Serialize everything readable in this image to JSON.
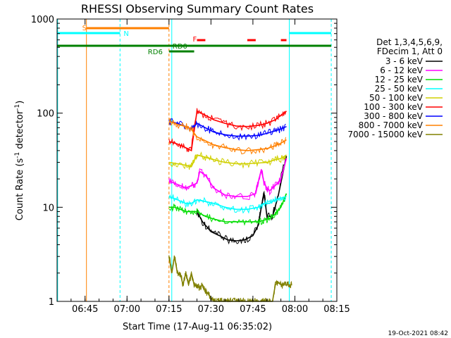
{
  "chart_data": {
    "type": "line",
    "title": "RHESSI Observing Summary Count Rates",
    "xlabel": "Start Time (17-Aug-11 06:35:02)",
    "ylabel_main": "Count Rate (s",
    "ylabel_sup": "-1",
    "ylabel_mid": " detector",
    "ylabel_sup2": "-1",
    "ylabel_end": ")",
    "y_scale": "log",
    "ylim": [
      1,
      1000
    ],
    "xlim_minutes": [
      0,
      100
    ],
    "x_ticks": [
      {
        "label": "06:45",
        "minutes": 10
      },
      {
        "label": "07:00",
        "minutes": 25
      },
      {
        "label": "07:15",
        "minutes": 40
      },
      {
        "label": "07:30",
        "minutes": 55
      },
      {
        "label": "07:45",
        "minutes": 70
      },
      {
        "label": "08:00",
        "minutes": 85
      },
      {
        "label": "08:15",
        "minutes": 100
      }
    ],
    "y_ticks": [
      {
        "label": "1",
        "value": 1
      },
      {
        "label": "10",
        "value": 10
      },
      {
        "label": "100",
        "value": 100
      },
      {
        "label": "1000",
        "value": 1000
      }
    ],
    "legend_header": [
      "Det 1,3,4,5,6,9,",
      "FDecim 1, Att 0"
    ],
    "series": [
      {
        "name": "3 - 6 keV",
        "color": "#000000",
        "t": [
          50,
          52,
          55,
          58,
          61,
          64,
          67,
          70,
          72,
          73,
          74,
          75,
          77,
          79,
          82
        ],
        "v": [
          9,
          7,
          5.5,
          5,
          4.5,
          4.4,
          4.5,
          5,
          6.5,
          10,
          14,
          8,
          8,
          13,
          35
        ]
      },
      {
        "name": "6 - 12 keV",
        "color": "#ff00ff",
        "t": [
          40,
          42,
          44,
          46,
          48,
          50,
          51,
          53,
          56,
          60,
          64,
          68,
          71,
          72,
          73,
          74,
          75,
          76,
          78,
          80,
          82
        ],
        "v": [
          19,
          18,
          17,
          16,
          17,
          18,
          24,
          22,
          16,
          13.5,
          13,
          13,
          14,
          19,
          25,
          18,
          16,
          15,
          17,
          20,
          33
        ]
      },
      {
        "name": "12 - 25 keV",
        "color": "#00dd00",
        "t": [
          40,
          42,
          44,
          46,
          48,
          50,
          53,
          56,
          60,
          64,
          68,
          72,
          74,
          76,
          78,
          80,
          82
        ],
        "v": [
          10,
          10,
          9.5,
          9,
          9,
          9,
          8,
          7.5,
          7,
          7,
          7,
          7,
          7.3,
          7.6,
          8.5,
          10,
          14
        ]
      },
      {
        "name": "25 - 50 keV",
        "color": "#00ffff",
        "t": [
          40,
          43,
          46,
          48,
          50,
          53,
          56,
          60,
          64,
          68,
          72,
          74,
          76,
          78,
          80,
          82
        ],
        "v": [
          13,
          12,
          11,
          11,
          12,
          11.5,
          11,
          10,
          9.5,
          9.5,
          10,
          11,
          11,
          12,
          12.5,
          13
        ]
      },
      {
        "name": "50 - 100 keV",
        "color": "#d0d000",
        "t": [
          40,
          43,
          46,
          48,
          50,
          53,
          56,
          60,
          64,
          68,
          72,
          75,
          78,
          80,
          82
        ],
        "v": [
          30,
          29,
          28,
          27,
          36,
          34,
          32,
          30,
          29,
          29,
          29.5,
          30,
          32,
          33,
          36
        ]
      },
      {
        "name": "100 - 300 keV",
        "color": "#ff0000",
        "t": [
          40,
          43,
          46,
          48,
          50,
          53,
          56,
          60,
          64,
          68,
          72,
          75,
          78,
          80,
          82
        ],
        "v": [
          50,
          47,
          43,
          40,
          105,
          95,
          85,
          78,
          73,
          72,
          74,
          78,
          85,
          95,
          105
        ]
      },
      {
        "name": "300 - 800 keV",
        "color": "#0000ff",
        "t": [
          40,
          43,
          46,
          48,
          50,
          53,
          56,
          60,
          64,
          68,
          72,
          75,
          78,
          80,
          82
        ],
        "v": [
          82,
          78,
          72,
          68,
          78,
          70,
          63,
          59,
          57,
          57,
          58,
          61,
          65,
          68,
          72
        ]
      },
      {
        "name": "800 - 7000 keV",
        "color": "#ff8000",
        "t": [
          40,
          43,
          46,
          48,
          50,
          53,
          56,
          60,
          64,
          68,
          72,
          75,
          78,
          80,
          82
        ],
        "v": [
          82,
          76,
          72,
          67,
          56,
          51,
          46,
          43,
          41,
          40,
          41,
          42,
          45,
          48,
          52
        ]
      },
      {
        "name": "7000 - 15000 keV",
        "color": "#808000",
        "t": [
          40,
          41,
          42,
          43,
          44,
          45,
          46,
          47,
          48,
          49,
          50,
          51,
          52,
          53,
          54,
          55,
          56,
          57,
          58,
          59,
          60,
          61,
          62,
          63,
          64,
          65,
          66,
          67,
          68,
          69,
          70,
          71,
          72,
          73,
          74,
          75,
          76,
          77,
          78,
          79,
          80,
          81,
          82,
          83,
          84
        ],
        "v": [
          3,
          2,
          3,
          2,
          2,
          1.5,
          2,
          1.5,
          2,
          1.5,
          1.5,
          1.4,
          1.5,
          1.3,
          1.2,
          1.1,
          1,
          1,
          1,
          1,
          1,
          1,
          1,
          1,
          1,
          1,
          1,
          1,
          1,
          1,
          1,
          1,
          1,
          1,
          1,
          1,
          1,
          1,
          1.5,
          1.6,
          1.5,
          1.5,
          1.5,
          1.5,
          1.5
        ]
      }
    ],
    "flag_labels": {
      "saa": "S",
      "night": "N",
      "rd0": "RD0",
      "rd6": "RD6",
      "flare": "F"
    },
    "footer_timestamp": "19-Oct-2021 08:42"
  }
}
